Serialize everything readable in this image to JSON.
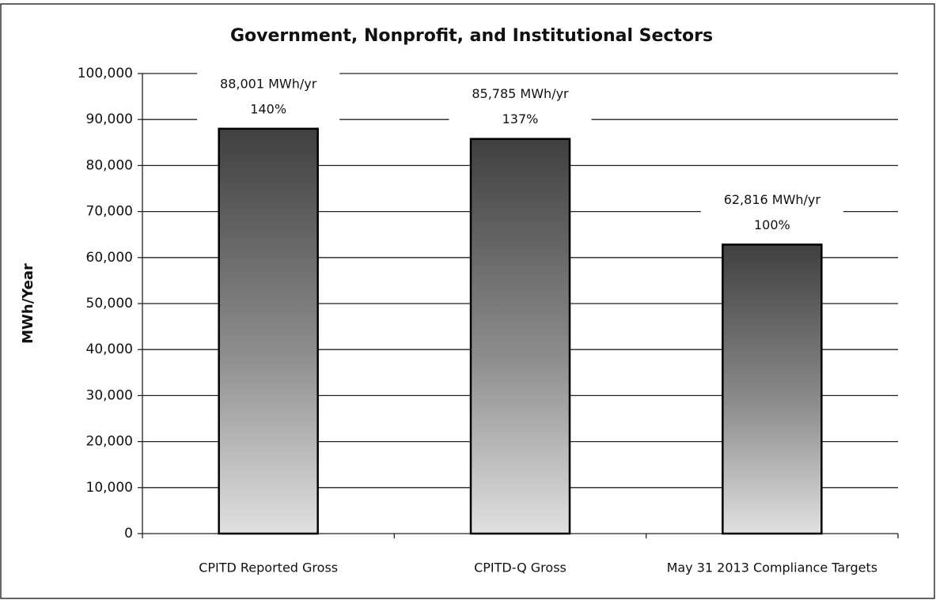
{
  "chart_data": {
    "type": "bar",
    "title": "Government, Nonprofit, and Institutional Sectors",
    "y_label": "MWh/Year",
    "categories": [
      "CPITD Reported Gross",
      "CPITD-Q Gross",
      "May 31 2013 Compliance Targets"
    ],
    "values": [
      88001,
      85785,
      62816
    ],
    "value_labels": [
      "88,001 MWh/yr",
      "85,785 MWh/yr",
      "62,816 MWh/yr"
    ],
    "percent_labels": [
      "140%",
      "137%",
      "100%"
    ],
    "color": "#6b6b6b",
    "ylim": [
      0,
      100000
    ],
    "yticks": [
      0,
      {
        "value": 10000,
        "label": "10,000"
      },
      {
        "value": 20000,
        "label": "20,000"
      },
      {
        "value": 30000,
        "label": "30,000"
      },
      {
        "value": 40000,
        "label": "40,000"
      },
      {
        "value": 50000,
        "label": "50,000"
      },
      {
        "value": 60000,
        "label": "60,000"
      },
      {
        "value": 70000,
        "label": "70,000"
      },
      {
        "value": 80000,
        "label": "80,000"
      },
      {
        "value": 90000,
        "label": "90,000"
      },
      {
        "value": 100000,
        "label": "100,000"
      }
    ],
    "grid": true
  }
}
